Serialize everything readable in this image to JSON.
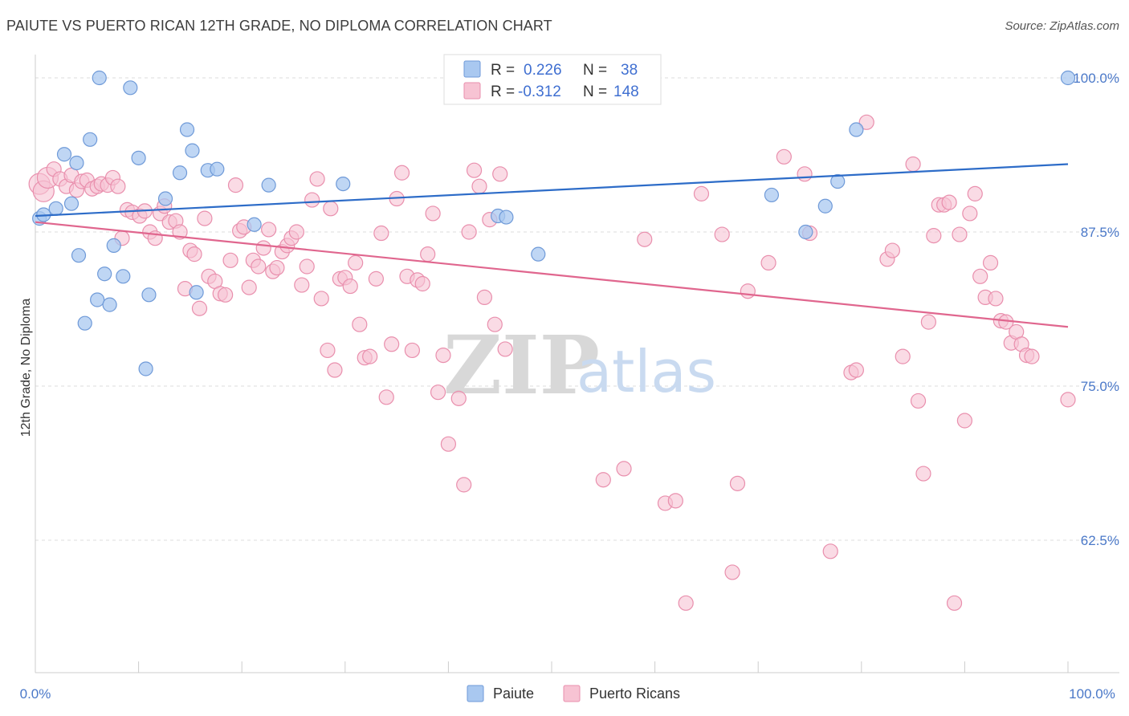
{
  "title": "PAIUTE VS PUERTO RICAN 12TH GRADE, NO DIPLOMA CORRELATION CHART",
  "source": "Source: ZipAtlas.com",
  "watermark": {
    "zip": "ZIP",
    "atlas": "atlas"
  },
  "colors": {
    "paiute_fill": "#a9c8f0",
    "paiute_stroke": "#6f9ad8",
    "paiute_line": "#2d6cc8",
    "pr_fill": "#f7c3d3",
    "pr_stroke": "#e98fad",
    "pr_line": "#e0668e",
    "grid": "#dddddd",
    "tick_text": "#4a78c8"
  },
  "legend": {
    "r_label": "R =",
    "n_label": "N =",
    "paiute": {
      "r": "0.226",
      "n": "38"
    },
    "puerto_rican": {
      "r": "-0.312",
      "n": "148"
    }
  },
  "chart_data": {
    "type": "scatter",
    "title": "PAIUTE VS PUERTO RICAN 12TH GRADE, NO DIPLOMA CORRELATION CHART",
    "xlabel": "",
    "ylabel": "12th Grade, No Diploma",
    "xlim": [
      0,
      100
    ],
    "ylim": [
      52,
      101.5
    ],
    "x_tick_labels": [
      "0.0%",
      "100.0%"
    ],
    "y_ticks": [
      62.5,
      75.0,
      87.5,
      100.0
    ],
    "y_tick_labels": [
      "62.5%",
      "75.0%",
      "87.5%",
      "100.0%"
    ],
    "grid": true,
    "legend_position": "top-center",
    "series": [
      {
        "name": "Paiute",
        "trend": {
          "x": [
            0,
            100
          ],
          "y": [
            88.8,
            93.0
          ]
        },
        "points": [
          [
            0.4,
            88.6
          ],
          [
            0.8,
            88.9
          ],
          [
            2.0,
            89.4
          ],
          [
            2.8,
            93.8
          ],
          [
            3.5,
            89.8
          ],
          [
            4.0,
            93.1
          ],
          [
            4.2,
            85.6
          ],
          [
            4.8,
            80.1
          ],
          [
            5.3,
            95.0
          ],
          [
            6.0,
            82.0
          ],
          [
            6.2,
            100.0
          ],
          [
            6.7,
            84.1
          ],
          [
            7.2,
            81.6
          ],
          [
            7.6,
            86.4
          ],
          [
            8.5,
            83.9
          ],
          [
            9.2,
            99.2
          ],
          [
            10.0,
            93.5
          ],
          [
            10.7,
            76.4
          ],
          [
            11.0,
            82.4
          ],
          [
            12.6,
            90.2
          ],
          [
            14.0,
            92.3
          ],
          [
            14.7,
            95.8
          ],
          [
            15.2,
            94.1
          ],
          [
            15.6,
            82.6
          ],
          [
            16.7,
            92.5
          ],
          [
            17.6,
            92.6
          ],
          [
            21.2,
            88.1
          ],
          [
            22.6,
            91.3
          ],
          [
            29.8,
            91.4
          ],
          [
            44.8,
            88.8
          ],
          [
            45.6,
            88.7
          ],
          [
            48.7,
            85.7
          ],
          [
            71.3,
            90.5
          ],
          [
            74.6,
            87.5
          ],
          [
            76.5,
            89.6
          ],
          [
            77.7,
            91.6
          ],
          [
            79.5,
            95.8
          ],
          [
            100.0,
            100.0
          ]
        ]
      },
      {
        "name": "Puerto Ricans",
        "trend": {
          "x": [
            0,
            100
          ],
          "y": [
            88.3,
            79.8
          ]
        },
        "points": [
          [
            0.4,
            91.4
          ],
          [
            0.8,
            90.8
          ],
          [
            1.2,
            91.9
          ],
          [
            1.8,
            92.6
          ],
          [
            2.4,
            91.8
          ],
          [
            3.0,
            91.2
          ],
          [
            3.5,
            92.1
          ],
          [
            4.0,
            90.9
          ],
          [
            4.5,
            91.6
          ],
          [
            5.0,
            91.7
          ],
          [
            5.5,
            91.0
          ],
          [
            6.0,
            91.2
          ],
          [
            6.4,
            91.4
          ],
          [
            7.0,
            91.3
          ],
          [
            7.5,
            91.9
          ],
          [
            8.0,
            91.2
          ],
          [
            8.4,
            87.0
          ],
          [
            8.9,
            89.3
          ],
          [
            9.4,
            89.1
          ],
          [
            10.1,
            88.8
          ],
          [
            10.6,
            89.2
          ],
          [
            11.1,
            87.5
          ],
          [
            11.6,
            87.0
          ],
          [
            12.1,
            89.0
          ],
          [
            12.5,
            89.6
          ],
          [
            13.0,
            88.3
          ],
          [
            13.6,
            88.4
          ],
          [
            14.0,
            87.5
          ],
          [
            14.5,
            82.9
          ],
          [
            15.0,
            86.0
          ],
          [
            15.4,
            85.7
          ],
          [
            15.9,
            81.3
          ],
          [
            16.4,
            88.6
          ],
          [
            16.8,
            83.9
          ],
          [
            17.4,
            83.5
          ],
          [
            17.9,
            82.5
          ],
          [
            18.4,
            82.4
          ],
          [
            18.9,
            85.2
          ],
          [
            19.4,
            91.3
          ],
          [
            19.8,
            87.6
          ],
          [
            20.2,
            87.9
          ],
          [
            20.7,
            83.0
          ],
          [
            21.1,
            85.2
          ],
          [
            21.6,
            84.7
          ],
          [
            22.1,
            86.2
          ],
          [
            22.6,
            87.7
          ],
          [
            23.0,
            84.3
          ],
          [
            23.4,
            84.6
          ],
          [
            23.9,
            85.9
          ],
          [
            24.4,
            86.4
          ],
          [
            24.8,
            87.0
          ],
          [
            25.3,
            87.5
          ],
          [
            25.8,
            83.2
          ],
          [
            26.3,
            84.7
          ],
          [
            26.8,
            90.1
          ],
          [
            27.3,
            91.8
          ],
          [
            27.7,
            82.1
          ],
          [
            28.3,
            77.9
          ],
          [
            28.6,
            89.4
          ],
          [
            29.0,
            76.3
          ],
          [
            29.5,
            83.7
          ],
          [
            30.0,
            83.8
          ],
          [
            30.5,
            83.1
          ],
          [
            31.0,
            85.0
          ],
          [
            31.4,
            80.0
          ],
          [
            31.9,
            77.3
          ],
          [
            32.4,
            77.4
          ],
          [
            33.0,
            83.7
          ],
          [
            33.5,
            87.4
          ],
          [
            34.0,
            74.1
          ],
          [
            34.5,
            78.4
          ],
          [
            35.0,
            90.2
          ],
          [
            35.5,
            92.3
          ],
          [
            36.0,
            83.9
          ],
          [
            36.5,
            77.9
          ],
          [
            37.0,
            83.6
          ],
          [
            37.5,
            83.3
          ],
          [
            38.0,
            85.7
          ],
          [
            38.5,
            89.0
          ],
          [
            39.0,
            74.5
          ],
          [
            39.5,
            77.5
          ],
          [
            40.0,
            70.3
          ],
          [
            41.0,
            74.0
          ],
          [
            41.5,
            67.0
          ],
          [
            42.0,
            87.5
          ],
          [
            42.5,
            92.5
          ],
          [
            43.0,
            91.2
          ],
          [
            43.5,
            82.2
          ],
          [
            44.0,
            88.5
          ],
          [
            44.5,
            80.0
          ],
          [
            45.0,
            92.2
          ],
          [
            45.5,
            78.0
          ],
          [
            46.5,
            100.0
          ],
          [
            47.0,
            100.0
          ],
          [
            48.0,
            100.0
          ],
          [
            49.0,
            100.0
          ],
          [
            50.0,
            100.0
          ],
          [
            51.0,
            100.0
          ],
          [
            52.0,
            100.0
          ],
          [
            55.0,
            67.4
          ],
          [
            57.0,
            68.3
          ],
          [
            59.0,
            86.9
          ],
          [
            61.0,
            65.5
          ],
          [
            62.0,
            65.7
          ],
          [
            63.0,
            57.4
          ],
          [
            64.5,
            90.6
          ],
          [
            66.5,
            87.3
          ],
          [
            67.5,
            59.9
          ],
          [
            68.0,
            67.1
          ],
          [
            69.0,
            82.7
          ],
          [
            71.0,
            85.0
          ],
          [
            72.5,
            93.6
          ],
          [
            74.5,
            92.2
          ],
          [
            75.0,
            87.4
          ],
          [
            77.0,
            61.6
          ],
          [
            79.0,
            76.1
          ],
          [
            79.5,
            76.3
          ],
          [
            80.5,
            96.4
          ],
          [
            82.5,
            85.3
          ],
          [
            83.0,
            86.0
          ],
          [
            84.0,
            77.4
          ],
          [
            85.0,
            93.0
          ],
          [
            85.5,
            73.8
          ],
          [
            86.0,
            67.9
          ],
          [
            86.5,
            80.2
          ],
          [
            87.0,
            87.2
          ],
          [
            87.5,
            89.7
          ],
          [
            88.0,
            89.7
          ],
          [
            88.5,
            89.9
          ],
          [
            89.0,
            57.4
          ],
          [
            89.5,
            87.3
          ],
          [
            90.0,
            72.2
          ],
          [
            90.5,
            89.0
          ],
          [
            91.0,
            90.6
          ],
          [
            91.5,
            83.9
          ],
          [
            92.0,
            82.2
          ],
          [
            92.5,
            85.0
          ],
          [
            93.0,
            82.1
          ],
          [
            93.5,
            80.3
          ],
          [
            94.0,
            80.2
          ],
          [
            94.5,
            78.5
          ],
          [
            95.0,
            79.4
          ],
          [
            95.5,
            78.4
          ],
          [
            96.0,
            77.5
          ],
          [
            96.5,
            77.4
          ],
          [
            100.0,
            73.9
          ]
        ]
      }
    ]
  },
  "bottom_legend": [
    "Paiute",
    "Puerto Ricans"
  ]
}
